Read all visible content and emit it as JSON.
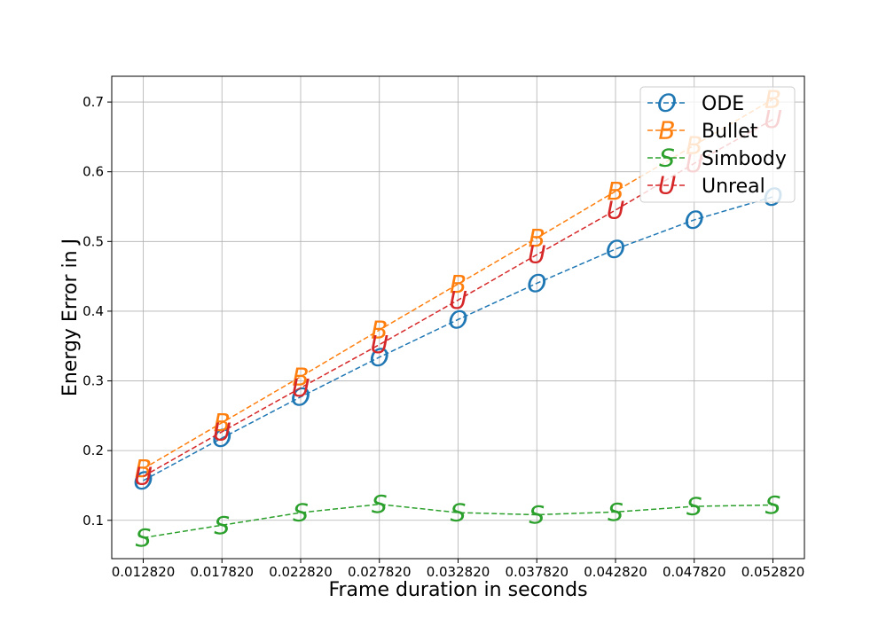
{
  "chart_data": {
    "type": "line",
    "title": "",
    "xlabel": "Frame duration in seconds",
    "ylabel": "Energy Error in J",
    "x": [
      0.01282,
      0.01782,
      0.02282,
      0.02782,
      0.03282,
      0.03782,
      0.04282,
      0.04782,
      0.05282
    ],
    "x_tick_labels": [
      "0.012820",
      "0.017820",
      "0.022820",
      "0.027820",
      "0.032820",
      "0.037820",
      "0.042820",
      "0.047820",
      "0.052820"
    ],
    "xlim": [
      0.01082,
      0.05482
    ],
    "y_ticks": [
      0.1,
      0.2,
      0.3,
      0.4,
      0.5,
      0.6,
      0.7
    ],
    "y_tick_labels": [
      "0.1",
      "0.2",
      "0.3",
      "0.4",
      "0.5",
      "0.6",
      "0.7"
    ],
    "ylim": [
      0.045,
      0.737
    ],
    "grid": true,
    "legend_position": "top-right",
    "series": [
      {
        "name": "ODE",
        "marker": "O",
        "color": "#1f77b4",
        "linestyle": "dashed",
        "values": [
          0.157,
          0.218,
          0.277,
          0.334,
          0.388,
          0.44,
          0.489,
          0.531,
          0.564
        ]
      },
      {
        "name": "Bullet",
        "marker": "B",
        "color": "#ff7f0e",
        "linestyle": "dashed",
        "values": [
          0.174,
          0.24,
          0.306,
          0.373,
          0.439,
          0.505,
          0.572,
          0.638,
          0.704
        ]
      },
      {
        "name": "Simbody",
        "marker": "S",
        "color": "#2ca02c",
        "linestyle": "dashed",
        "values": [
          0.075,
          0.093,
          0.111,
          0.123,
          0.111,
          0.108,
          0.112,
          0.12,
          0.122
        ]
      },
      {
        "name": "Unreal",
        "marker": "U",
        "color": "#d62728",
        "linestyle": "dashed",
        "values": [
          0.163,
          0.227,
          0.29,
          0.352,
          0.416,
          0.481,
          0.545,
          0.612,
          0.675
        ]
      }
    ]
  }
}
